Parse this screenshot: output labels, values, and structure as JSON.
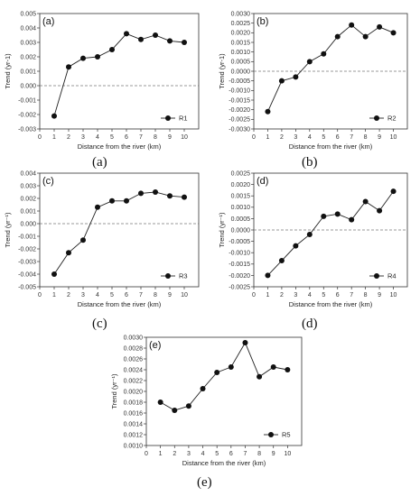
{
  "captions": [
    "(a)",
    "(b)",
    "(c)",
    "(d)",
    "(e)"
  ],
  "chart_data": [
    {
      "type": "line",
      "panel_label": "(a)",
      "xlabel": "Distance from the river (km)",
      "ylabel": "Trend (yr-1)",
      "x": [
        1,
        2,
        3,
        4,
        5,
        6,
        7,
        8,
        9,
        10
      ],
      "series": [
        {
          "name": "R1",
          "values": [
            -0.0021,
            0.0013,
            0.0019,
            0.002,
            0.0025,
            0.0036,
            0.0032,
            0.0035,
            0.0031,
            0.003
          ]
        }
      ],
      "xlim": [
        0,
        11
      ],
      "xticks": [
        "0",
        "1",
        "2",
        "3",
        "4",
        "5",
        "6",
        "7",
        "8",
        "9",
        "10"
      ],
      "ylim": [
        -0.003,
        0.005
      ],
      "yticks": [
        "-0.003",
        "-0.002",
        "-0.001",
        "0.000",
        "0.001",
        "0.002",
        "0.003",
        "0.004",
        "0.005"
      ],
      "reference_line": 0,
      "legend_position": "bottom-right",
      "grid": false
    },
    {
      "type": "line",
      "panel_label": "(b)",
      "xlabel": "Distance from the river (km)",
      "ylabel": "Trend (yr-1)",
      "x": [
        1,
        2,
        3,
        4,
        5,
        6,
        7,
        8,
        9,
        10
      ],
      "series": [
        {
          "name": "R2",
          "values": [
            -0.0021,
            -0.0005,
            -0.0003,
            0.0005,
            0.0009,
            0.0018,
            0.0024,
            0.0018,
            0.0023,
            0.002
          ]
        }
      ],
      "xlim": [
        0,
        11
      ],
      "xticks": [
        "0",
        "1",
        "2",
        "3",
        "4",
        "5",
        "6",
        "7",
        "8",
        "9",
        "10"
      ],
      "ylim": [
        -0.003,
        0.003
      ],
      "yticks": [
        "-0.0030",
        "-0.0025",
        "-0.0020",
        "-0.0015",
        "-0.0010",
        "-0.0005",
        "0.0000",
        "0.0005",
        "0.0010",
        "0.0015",
        "0.0020",
        "0.0025",
        "0.0030"
      ],
      "reference_line": 0,
      "legend_position": "bottom-right",
      "grid": false
    },
    {
      "type": "line",
      "panel_label": "(c)",
      "xlabel": "Distance from the river (km)",
      "ylabel": "Trend (yr⁻¹)",
      "x": [
        1,
        2,
        3,
        4,
        5,
        6,
        7,
        8,
        9,
        10
      ],
      "series": [
        {
          "name": "R3",
          "values": [
            -0.004,
            -0.0023,
            -0.0013,
            0.0013,
            0.0018,
            0.0018,
            0.0024,
            0.0025,
            0.0022,
            0.0021
          ]
        }
      ],
      "xlim": [
        0,
        11
      ],
      "xticks": [
        "0",
        "1",
        "2",
        "3",
        "4",
        "5",
        "6",
        "7",
        "8",
        "9",
        "10"
      ],
      "ylim": [
        -0.005,
        0.004
      ],
      "yticks": [
        "-0.005",
        "-0.004",
        "-0.003",
        "-0.002",
        "-0.001",
        "0.000",
        "0.001",
        "0.002",
        "0.003",
        "0.004"
      ],
      "reference_line": 0,
      "legend_position": "bottom-right",
      "grid": false
    },
    {
      "type": "line",
      "panel_label": "(d)",
      "xlabel": "Distance from the river (km)",
      "ylabel": "Trend (yr⁻¹)",
      "x": [
        1,
        2,
        3,
        4,
        5,
        6,
        7,
        8,
        9,
        10
      ],
      "series": [
        {
          "name": "R4",
          "values": [
            -0.002,
            -0.00135,
            -0.0007,
            -0.0002,
            0.0006,
            0.0007,
            0.00045,
            0.00125,
            0.00085,
            0.0017
          ]
        }
      ],
      "xlim": [
        0,
        11
      ],
      "xticks": [
        "0",
        "1",
        "2",
        "3",
        "4",
        "5",
        "6",
        "7",
        "8",
        "9",
        "10"
      ],
      "ylim": [
        -0.0025,
        0.0025
      ],
      "yticks": [
        "-0.0025",
        "-0.0020",
        "-0.0015",
        "-0.0010",
        "-0.0005",
        "0.0000",
        "0.0005",
        "0.0010",
        "0.0015",
        "0.0020",
        "0.0025"
      ],
      "reference_line": 0,
      "legend_position": "bottom-right",
      "grid": false
    },
    {
      "type": "line",
      "panel_label": "(e)",
      "xlabel": "Distance from the river (km)",
      "ylabel": "Trend (yr⁻¹)",
      "x": [
        1,
        2,
        3,
        4,
        5,
        6,
        7,
        8,
        9,
        10
      ],
      "series": [
        {
          "name": "R5",
          "values": [
            0.0018,
            0.00165,
            0.00173,
            0.00205,
            0.00235,
            0.00245,
            0.0029,
            0.00227,
            0.00245,
            0.0024
          ]
        }
      ],
      "xlim": [
        0,
        11
      ],
      "xticks": [
        "0",
        "1",
        "2",
        "3",
        "4",
        "5",
        "6",
        "7",
        "8",
        "9",
        "10"
      ],
      "ylim": [
        0.001,
        0.003
      ],
      "yticks": [
        "0.0010",
        "0.0012",
        "0.0014",
        "0.0016",
        "0.0018",
        "0.0020",
        "0.0022",
        "0.0024",
        "0.0026",
        "0.0028",
        "0.0030"
      ],
      "reference_line": null,
      "legend_position": "bottom-right",
      "grid": false
    }
  ]
}
